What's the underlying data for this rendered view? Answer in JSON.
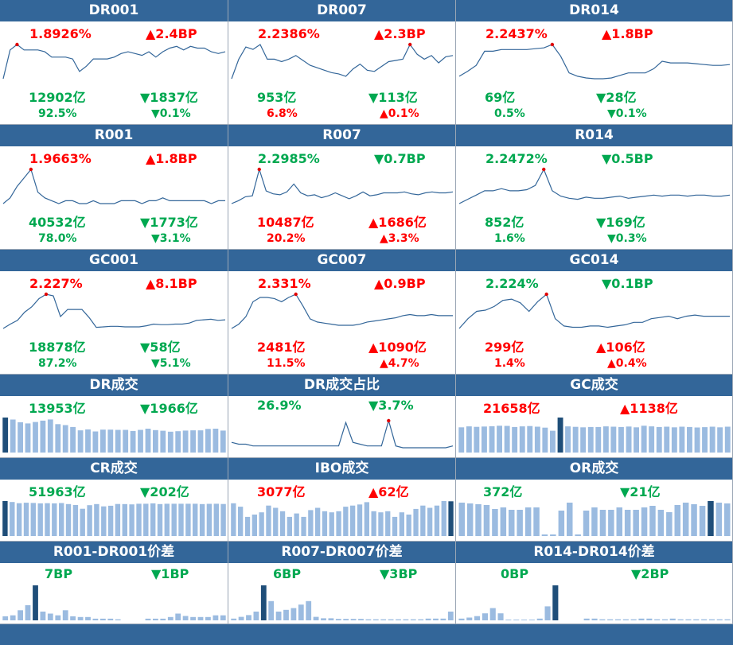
{
  "colors": {
    "header": "#336699",
    "up": "#ff0000",
    "down": "#00a850",
    "line": "#336699",
    "bar": "#9bbbe0",
    "bar_highlight": "#1f4e79"
  },
  "rate_panels": [
    {
      "title": "DR001",
      "rate": "1.8926%",
      "rate_dir": "up",
      "change": "2.4BP",
      "change_dir": "up",
      "volume": "12902亿",
      "volume_dir": "down",
      "volume_change": "1837亿",
      "volume_change_dir": "down",
      "share": "92.5%",
      "share_dir": "down",
      "share_change": "0.1%",
      "share_change_dir": "down",
      "series": [
        1.7,
        1.86,
        1.89,
        1.86,
        1.86,
        1.86,
        1.85,
        1.82,
        1.82,
        1.82,
        1.81,
        1.74,
        1.77,
        1.81,
        1.81,
        1.81,
        1.82,
        1.84,
        1.85,
        1.84,
        1.83,
        1.85,
        1.82,
        1.85,
        1.87,
        1.88,
        1.86,
        1.88,
        1.87,
        1.87,
        1.85,
        1.84,
        1.85
      ],
      "peak": 2
    },
    {
      "title": "DR007",
      "rate": "2.2386%",
      "rate_dir": "up",
      "change": "2.3BP",
      "change_dir": "up",
      "volume": "953亿",
      "volume_dir": "down",
      "volume_change": "113亿",
      "volume_change_dir": "down",
      "share": "6.8%",
      "share_dir": "up",
      "share_change": "0.1%",
      "share_change_dir": "up",
      "series": [
        1.96,
        2.12,
        2.22,
        2.2,
        2.24,
        2.12,
        2.12,
        2.1,
        2.12,
        2.15,
        2.11,
        2.07,
        2.05,
        2.03,
        2.01,
        2.0,
        1.98,
        2.04,
        2.08,
        2.03,
        2.02,
        2.06,
        2.1,
        2.11,
        2.12,
        2.24,
        2.16,
        2.12,
        2.15,
        2.09,
        2.14,
        2.15
      ],
      "peak": 25
    },
    {
      "title": "DR014",
      "rate": "2.2437%",
      "rate_dir": "up",
      "change": "1.8BP",
      "change_dir": "up",
      "volume": "69亿",
      "volume_dir": "down",
      "volume_change": "28亿",
      "volume_change_dir": "down",
      "share": "0.5%",
      "share_dir": "down",
      "share_change": "0.1%",
      "share_change_dir": "down",
      "series": [
        1.86,
        1.92,
        1.99,
        2.16,
        2.16,
        2.18,
        2.18,
        2.18,
        2.18,
        2.19,
        2.2,
        2.24,
        2.1,
        1.9,
        1.86,
        1.84,
        1.83,
        1.83,
        1.84,
        1.87,
        1.9,
        1.9,
        1.9,
        1.95,
        2.04,
        2.02,
        2.02,
        2.02,
        2.01,
        2.0,
        1.99,
        1.99,
        2.0
      ],
      "peak": 11
    },
    {
      "title": "R001",
      "rate": "1.9663%",
      "rate_dir": "up",
      "change": "1.8BP",
      "change_dir": "up",
      "volume": "40532亿",
      "volume_dir": "down",
      "volume_change": "1773亿",
      "volume_change_dir": "down",
      "share": "78.0%",
      "share_dir": "down",
      "share_change": "3.1%",
      "share_change_dir": "down",
      "series": [
        1.85,
        1.87,
        1.91,
        1.94,
        1.97,
        1.89,
        1.87,
        1.86,
        1.85,
        1.86,
        1.86,
        1.85,
        1.85,
        1.86,
        1.85,
        1.85,
        1.85,
        1.86,
        1.86,
        1.86,
        1.85,
        1.86,
        1.86,
        1.87,
        1.86,
        1.86,
        1.86,
        1.86,
        1.86,
        1.86,
        1.85,
        1.86,
        1.86
      ],
      "peak": 4
    },
    {
      "title": "R007",
      "rate": "2.2985%",
      "rate_dir": "down",
      "change": "0.7BP",
      "change_dir": "down",
      "volume": "10487亿",
      "volume_dir": "up",
      "volume_change": "1686亿",
      "volume_change_dir": "up",
      "share": "20.2%",
      "share_dir": "up",
      "share_change": "3.3%",
      "share_change_dir": "up",
      "series": [
        1.95,
        1.98,
        2.02,
        2.03,
        2.3,
        2.08,
        2.05,
        2.04,
        2.07,
        2.15,
        2.06,
        2.03,
        2.04,
        2.01,
        2.03,
        2.06,
        2.03,
        2.0,
        2.03,
        2.07,
        2.03,
        2.04,
        2.06,
        2.06,
        2.06,
        2.07,
        2.05,
        2.04,
        2.06,
        2.07,
        2.06,
        2.06,
        2.07
      ],
      "peak": 4
    },
    {
      "title": "R014",
      "rate": "2.2472%",
      "rate_dir": "down",
      "change": "0.5BP",
      "change_dir": "down",
      "volume": "852亿",
      "volume_dir": "down",
      "volume_change": "169亿",
      "volume_change_dir": "down",
      "share": "1.6%",
      "share_dir": "down",
      "share_change": "0.3%",
      "share_change_dir": "down",
      "series": [
        1.93,
        1.97,
        2.01,
        2.05,
        2.05,
        2.07,
        2.05,
        2.05,
        2.06,
        2.1,
        2.25,
        2.05,
        2.0,
        1.98,
        1.97,
        1.99,
        1.98,
        1.98,
        1.99,
        2.0,
        1.98,
        1.99,
        2.0,
        2.01,
        2.0,
        2.01,
        2.01,
        2.0,
        2.01,
        2.01,
        2.0,
        2.0,
        2.01
      ],
      "peak": 10
    },
    {
      "title": "GC001",
      "rate": "2.227%",
      "rate_dir": "up",
      "change": "8.1BP",
      "change_dir": "up",
      "volume": "18878亿",
      "volume_dir": "down",
      "volume_change": "58亿",
      "volume_change_dir": "down",
      "share": "87.2%",
      "share_dir": "down",
      "share_change": "5.1%",
      "share_change_dir": "down",
      "series": [
        1.6,
        1.68,
        1.75,
        1.9,
        2.0,
        2.15,
        2.23,
        2.2,
        1.82,
        1.95,
        1.95,
        1.95,
        1.8,
        1.62,
        1.63,
        1.64,
        1.64,
        1.63,
        1.63,
        1.63,
        1.65,
        1.68,
        1.67,
        1.67,
        1.68,
        1.68,
        1.7,
        1.75,
        1.76,
        1.77,
        1.75,
        1.76
      ],
      "peak": 6
    },
    {
      "title": "GC007",
      "rate": "2.331%",
      "rate_dir": "up",
      "change": "0.9BP",
      "change_dir": "up",
      "volume": "2481亿",
      "volume_dir": "up",
      "volume_change": "1090亿",
      "volume_change_dir": "up",
      "share": "11.5%",
      "share_dir": "up",
      "share_change": "4.7%",
      "share_change_dir": "up",
      "series": [
        2.01,
        2.05,
        2.12,
        2.26,
        2.3,
        2.3,
        2.29,
        2.26,
        2.3,
        2.33,
        2.22,
        2.1,
        2.07,
        2.06,
        2.05,
        2.04,
        2.04,
        2.04,
        2.05,
        2.07,
        2.08,
        2.09,
        2.1,
        2.11,
        2.13,
        2.14,
        2.13,
        2.13,
        2.14,
        2.13,
        2.13,
        2.13
      ],
      "peak": 9
    },
    {
      "title": "GC014",
      "rate": "2.224%",
      "rate_dir": "down",
      "change": "0.1BP",
      "change_dir": "down",
      "volume": "299亿",
      "volume_dir": "up",
      "volume_change": "106亿",
      "volume_change_dir": "up",
      "share": "1.4%",
      "share_dir": "up",
      "share_change": "0.4%",
      "share_change_dir": "up",
      "series": [
        1.88,
        1.96,
        2.02,
        2.03,
        2.06,
        2.11,
        2.12,
        2.09,
        2.02,
        2.1,
        2.16,
        1.96,
        1.9,
        1.89,
        1.89,
        1.9,
        1.9,
        1.89,
        1.9,
        1.91,
        1.93,
        1.93,
        1.96,
        1.97,
        1.98,
        1.96,
        1.98,
        1.99,
        1.98,
        1.98,
        1.98,
        1.98
      ],
      "peak": 10
    }
  ],
  "volume_panels": [
    {
      "title": "DR成交",
      "value": "13953亿",
      "value_dir": "down",
      "change": "1966亿",
      "change_dir": "down",
      "kind": "bar",
      "bars": [
        14800,
        13953,
        12800,
        12300,
        12900,
        13500,
        14000,
        12000,
        11600,
        10800,
        9400,
        9800,
        8900,
        9700,
        9700,
        9600,
        9600,
        9100,
        9600,
        10100,
        9500,
        9200,
        8800,
        9000,
        9300,
        9400,
        9400,
        10000,
        10100,
        9300
      ],
      "highlight": 0
    },
    {
      "title": "DR成交占比",
      "value": "26.9%",
      "value_dir": "down",
      "change": "3.7%",
      "change_dir": "down",
      "kind": "line",
      "series": [
        0.05,
        0.04,
        0.04,
        0.03,
        0.03,
        0.03,
        0.03,
        0.03,
        0.03,
        0.03,
        0.03,
        0.03,
        0.03,
        0.03,
        0.03,
        0.03,
        0.16,
        0.05,
        0.04,
        0.03,
        0.03,
        0.03,
        0.17,
        0.03,
        0.02,
        0.02,
        0.02,
        0.02,
        0.02,
        0.02,
        0.02,
        0.03
      ],
      "peak": 22
    },
    {
      "title": "GC成交",
      "value": "21658亿",
      "value_dir": "up",
      "change": "1138亿",
      "change_dir": "up",
      "kind": "bar",
      "bars": [
        15600,
        16200,
        15900,
        16100,
        16300,
        16600,
        16500,
        15800,
        16200,
        16400,
        16000,
        15400,
        13500,
        21658,
        16200,
        15900,
        15600,
        15800,
        15800,
        16200,
        16000,
        15800,
        16100,
        15600,
        16600,
        16200,
        15800,
        16000,
        15600,
        16000,
        15800,
        15500,
        15700,
        16000,
        15600,
        16000
      ],
      "highlight": 13
    },
    {
      "title": "CR成交",
      "value": "51963亿",
      "value_dir": "down",
      "change": "202亿",
      "change_dir": "down",
      "kind": "bar",
      "bars": [
        51963,
        50500,
        48800,
        49500,
        49100,
        48500,
        48800,
        48500,
        49000,
        47500,
        46000,
        40500,
        45800,
        47500,
        44000,
        45000,
        47600,
        47500,
        47000,
        48000,
        48000,
        48500,
        47500,
        48000,
        48000,
        48000,
        48000,
        48000,
        47500,
        47800,
        48000,
        47600
      ],
      "highlight": 0
    },
    {
      "title": "IBO成交",
      "value": "3077亿",
      "value_dir": "up",
      "change": "62亿",
      "change_dir": "up",
      "kind": "bar",
      "bars": [
        2900,
        2600,
        1700,
        1900,
        2100,
        2700,
        2500,
        2200,
        1700,
        2000,
        1700,
        2300,
        2500,
        2200,
        2100,
        2200,
        2600,
        2700,
        2800,
        3000,
        2200,
        2100,
        2200,
        1700,
        2100,
        1900,
        2400,
        2700,
        2500,
        2700,
        3100,
        3077
      ],
      "highlight": 31
    },
    {
      "title": "OR成交",
      "value": "372亿",
      "value_dir": "down",
      "change": "21亿",
      "change_dir": "down",
      "kind": "bar",
      "bars": [
        420,
        410,
        400,
        390,
        340,
        360,
        330,
        330,
        360,
        360,
        20,
        20,
        320,
        420,
        20,
        320,
        360,
        330,
        330,
        360,
        330,
        330,
        360,
        380,
        330,
        300,
        390,
        420,
        400,
        380,
        440,
        420,
        410
      ],
      "highlight": 30
    }
  ],
  "spread_panels": [
    {
      "title": "R001-DR001价差",
      "value": "7BP",
      "value_dir": "down",
      "change": "1BP",
      "change_dir": "down",
      "bars": [
        1.2,
        1.5,
        3.0,
        4.5,
        10.4,
        2.6,
        2.0,
        1.5,
        3.0,
        1.2,
        1.0,
        1.0,
        0.5,
        0.5,
        0.5,
        0.3,
        0,
        0,
        0,
        0.5,
        0.5,
        0.5,
        1.0,
        2.0,
        1.3,
        1.0,
        1.0,
        1.0,
        1.5,
        1.5
      ],
      "highlight": 4
    },
    {
      "title": "R007-DR007价差",
      "value": "6BP",
      "value_dir": "down",
      "change": "3BP",
      "change_dir": "down",
      "bars": [
        0.5,
        1.0,
        1.5,
        2.5,
        10.0,
        5.5,
        2.5,
        3.0,
        3.5,
        4.5,
        5.5,
        1.0,
        0.6,
        0.6,
        0.4,
        0.4,
        0.4,
        0.4,
        0.3,
        0.3,
        0.3,
        0.3,
        0.3,
        0.3,
        0.3,
        0.3,
        0.5,
        0.5,
        0.5,
        2.5
      ],
      "highlight": 4
    },
    {
      "title": "R014-DR014价差",
      "value": "0BP",
      "value_dir": "down",
      "change": "2BP",
      "change_dir": "down",
      "bars": [
        0.5,
        0.8,
        1.2,
        2.0,
        3.5,
        2.0,
        0.2,
        0.2,
        0.2,
        0.2,
        0.5,
        4.0,
        10.0,
        0,
        0,
        0,
        0.5,
        0.5,
        0.3,
        0.3,
        0.3,
        0.3,
        0.3,
        0.5,
        0.5,
        0.3,
        0.3,
        0.5,
        0.3,
        0.3,
        0.3,
        0.3,
        0.3,
        0.3,
        0.3
      ],
      "highlight": 12
    }
  ]
}
